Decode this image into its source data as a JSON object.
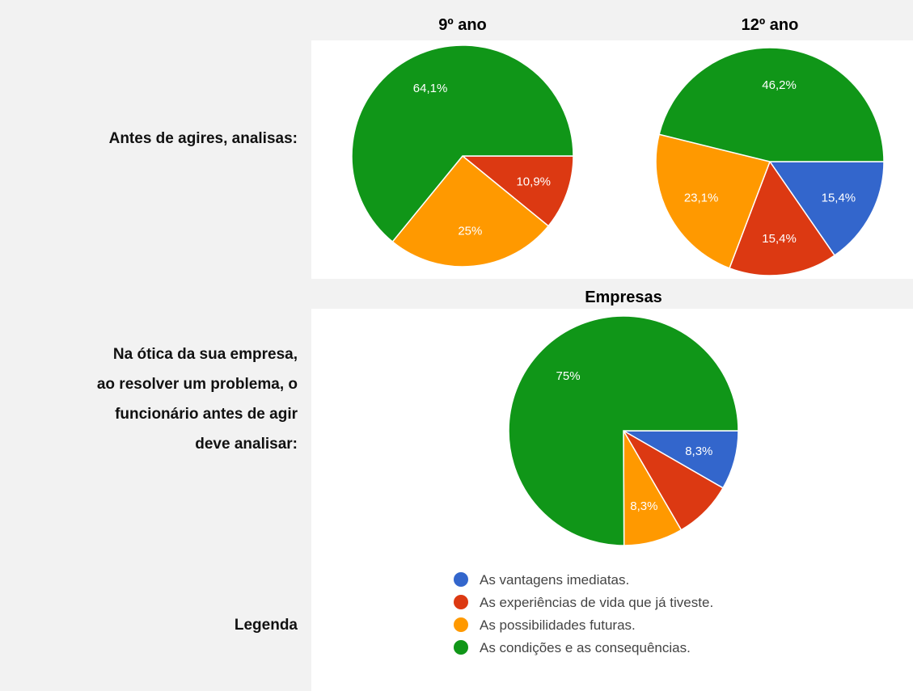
{
  "row_labels": {
    "q1": "Antes de agires, analisas:",
    "q2": [
      "Na ótica da sua empresa,",
      "ao resolver um problema, o",
      "funcionário antes de agir",
      "deve analisar:"
    ],
    "legend": "Legenda"
  },
  "legend": {
    "names": [
      "As vantagens imediatas.",
      "As experiências de vida que já tiveste.",
      "As possibilidades futuras.",
      "As condições e as consequências."
    ],
    "colors": [
      "#3366cc",
      "#dc3912",
      "#ff9900",
      "#109618"
    ]
  },
  "chart_data": [
    {
      "type": "pie",
      "title": "9º ano",
      "values": [
        0,
        10.9,
        25,
        64.1
      ],
      "value_labels": [
        null,
        "10,9%",
        "25%",
        "64,1%"
      ]
    },
    {
      "type": "pie",
      "title": "12º ano",
      "values": [
        15.4,
        15.4,
        23.1,
        46.2
      ],
      "value_labels": [
        "15,4%",
        "15,4%",
        "23,1%",
        "46,2%"
      ]
    },
    {
      "type": "pie",
      "title": "Empresas",
      "values": [
        8.3,
        8.3,
        8.3,
        75
      ],
      "value_labels": [
        "8,3%",
        null,
        "8,3%",
        "75%"
      ]
    }
  ]
}
